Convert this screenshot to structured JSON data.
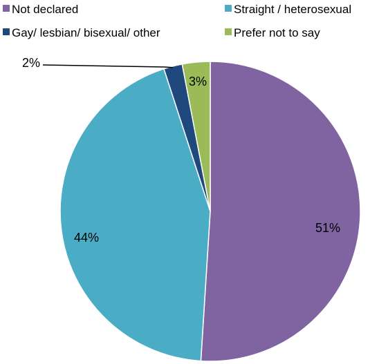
{
  "chart_data": {
    "type": "pie",
    "categories": [
      "Not declared",
      "Straight / heterosexual",
      "Gay/ lesbian/ bisexual/ other",
      "Prefer not to say"
    ],
    "values": [
      51,
      44,
      2,
      3
    ],
    "data_labels": [
      "51%",
      "44%",
      "2%",
      "3%"
    ],
    "colors": [
      "#8064A2",
      "#4BACC6",
      "#1F497D",
      "#9BBB59"
    ],
    "legend": {
      "position": "top",
      "entries": [
        "Not declared",
        "Straight / heterosexual",
        "Gay/ lesbian/ bisexual/ other",
        "Prefer not to say"
      ]
    },
    "start_angle": "12 o'clock",
    "direction": "clockwise",
    "title": "",
    "xlabel": "",
    "ylabel": ""
  }
}
